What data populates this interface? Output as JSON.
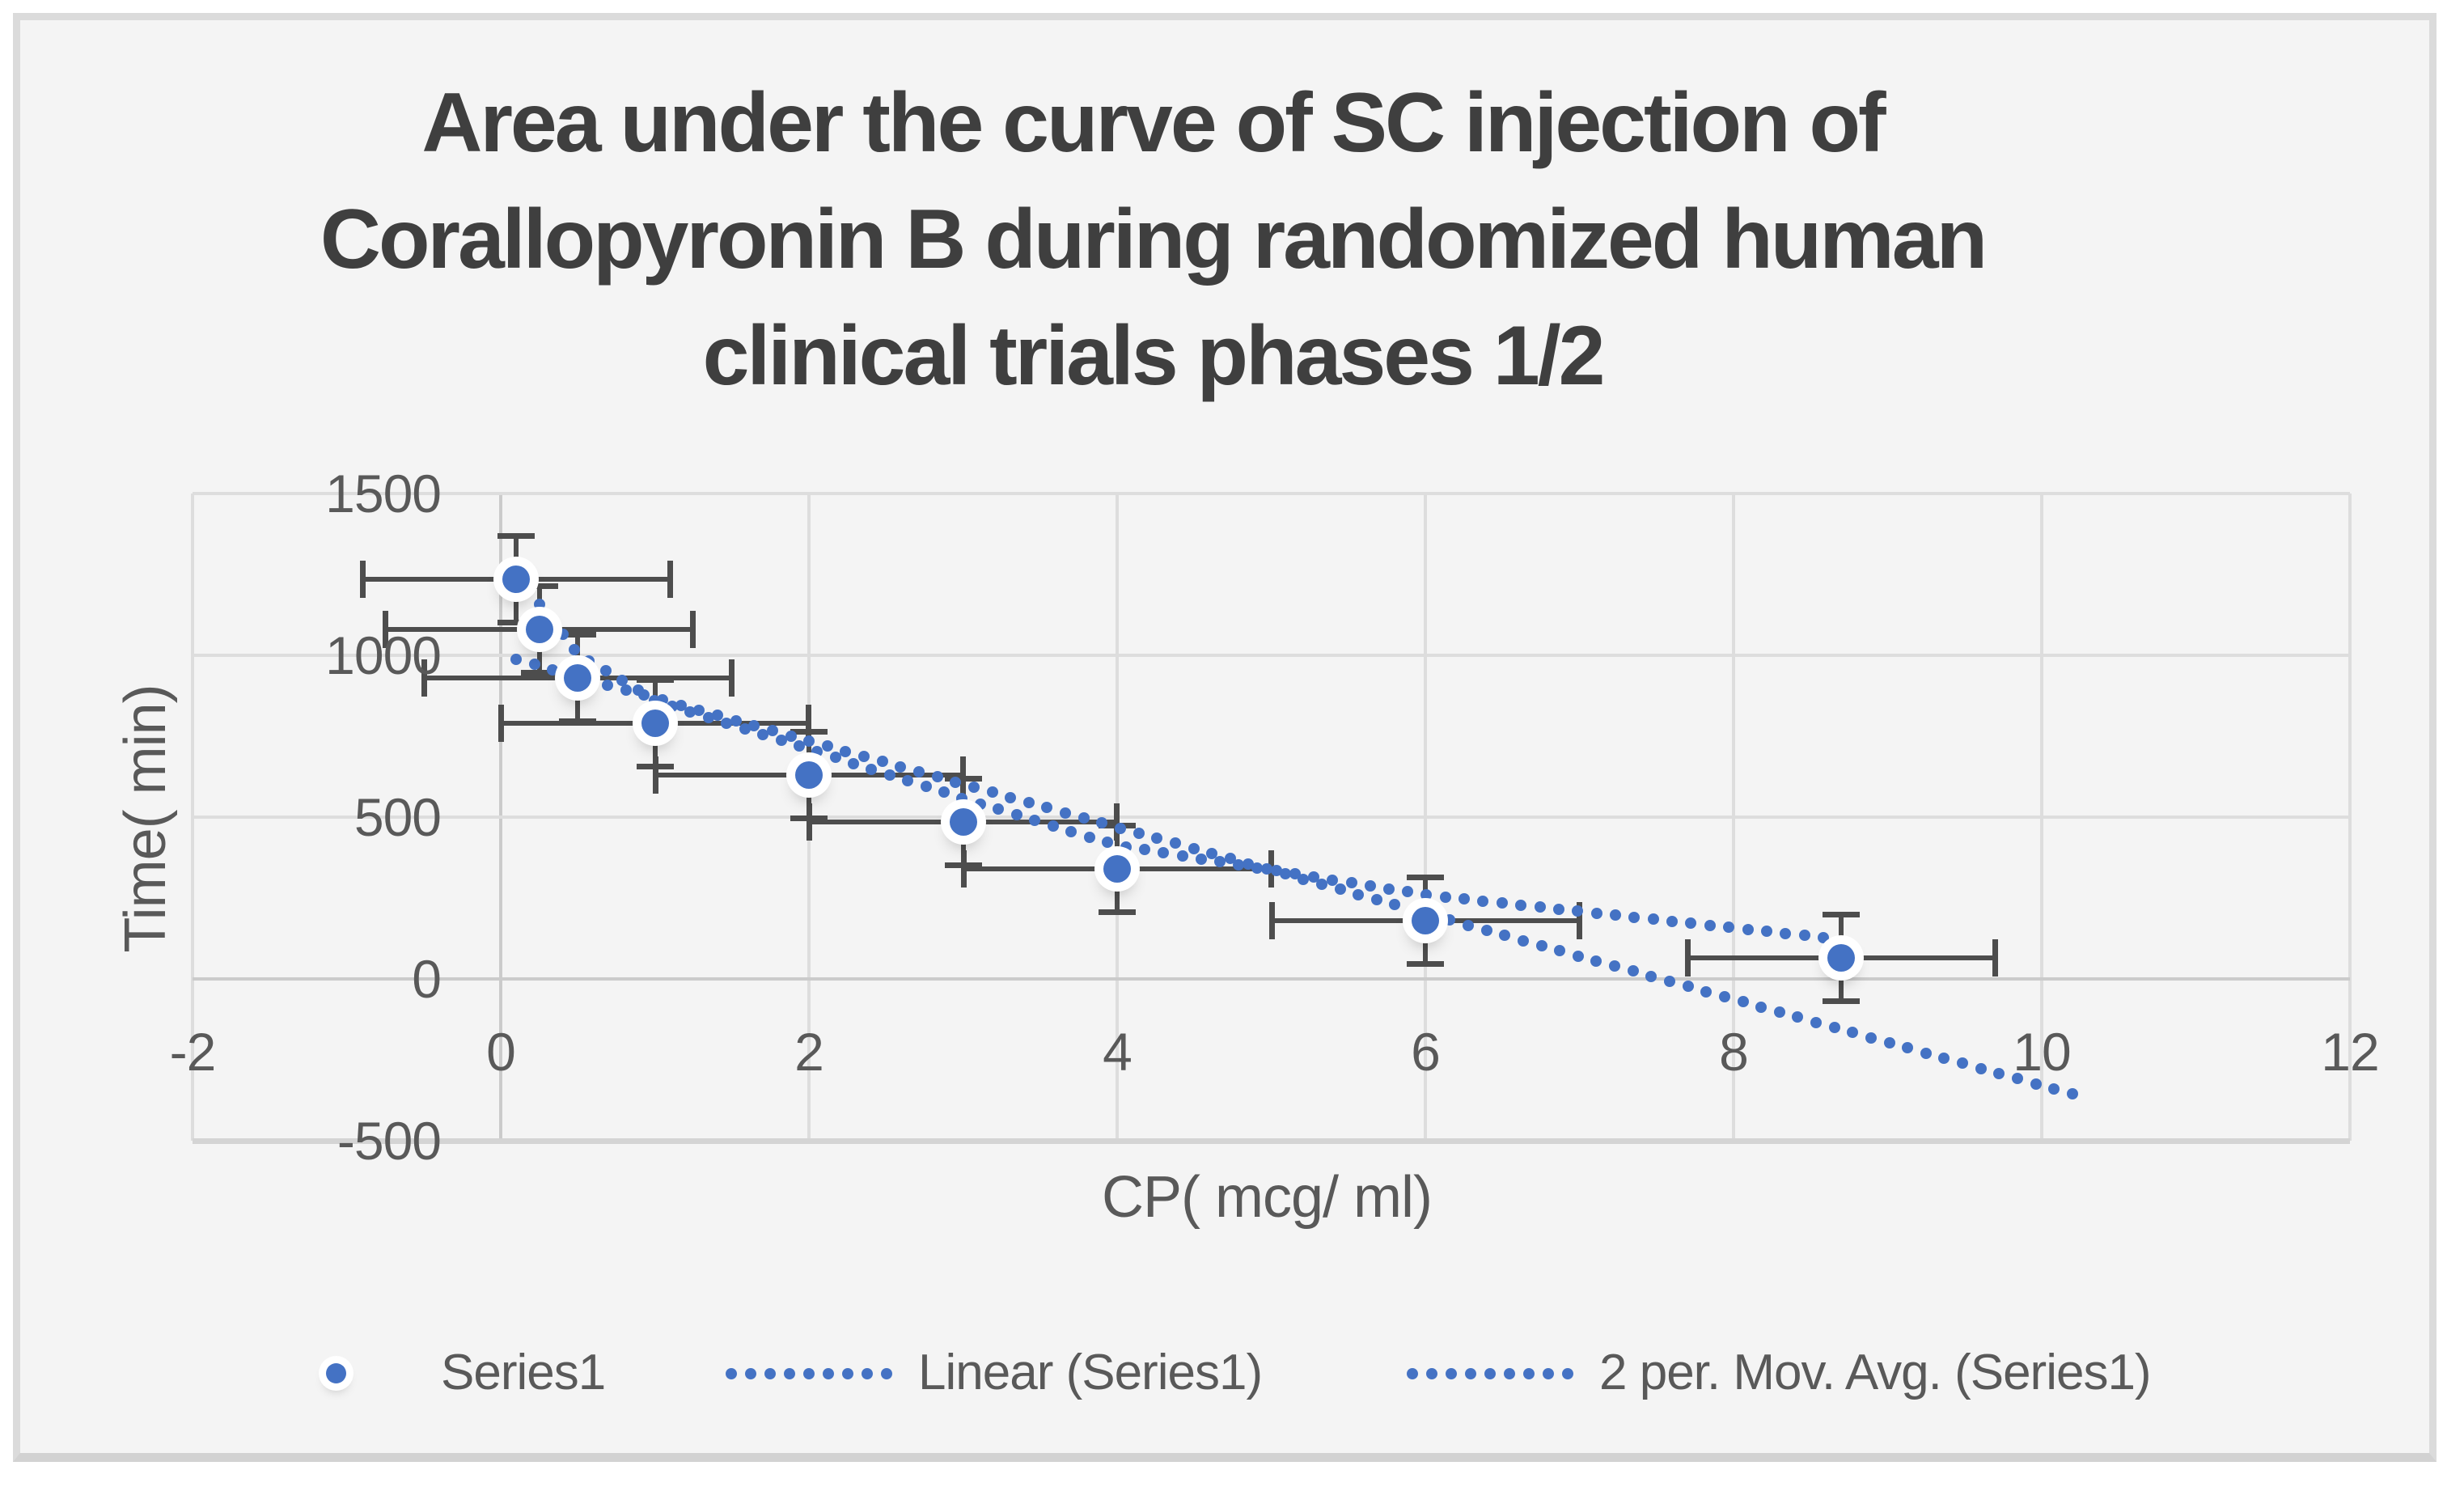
{
  "chart_data": {
    "type": "scatter",
    "title_lines": [
      "Area under the curve of SC injection of",
      "Corallopyronin B during randomized human",
      "clinical trials phases 1/2"
    ],
    "x_axis": {
      "title": "CP( mcg/ ml)",
      "min": -2,
      "max": 12,
      "ticks": [
        -2,
        0,
        2,
        4,
        6,
        8,
        10,
        12
      ],
      "grid": true
    },
    "y_axis": {
      "title": "Time( min)",
      "min": -500,
      "max": 1500,
      "ticks": [
        -500,
        0,
        500,
        1000,
        1500
      ],
      "grid": true
    },
    "series": [
      {
        "name": "Series1",
        "marker": "circle",
        "color": "#4472c4",
        "points": [
          {
            "x": 0.1,
            "y": 1235
          },
          {
            "x": 0.25,
            "y": 1080
          },
          {
            "x": 0.5,
            "y": 930
          },
          {
            "x": 1.0,
            "y": 790
          },
          {
            "x": 2.0,
            "y": 630
          },
          {
            "x": 3.0,
            "y": 485
          },
          {
            "x": 4.0,
            "y": 340
          },
          {
            "x": 6.0,
            "y": 180
          },
          {
            "x": 8.7,
            "y": 65
          }
        ],
        "x_error_plus_minus": 1.0,
        "y_error_plus_minus": 135
      }
    ],
    "trendlines": [
      {
        "name": "Linear (Series1)",
        "type": "linear",
        "slope": -133,
        "intercept": 1001,
        "x_start": 0.1,
        "x_end": 10.25,
        "style": "dotted",
        "color": "#4472c4"
      },
      {
        "name": "2 per. Mov. Avg. (Series1)",
        "type": "moving_average",
        "period": 2,
        "style": "dotted",
        "color": "#4472c4"
      }
    ],
    "legend": {
      "position": "bottom",
      "items": [
        {
          "label": "Series1",
          "swatch": "marker"
        },
        {
          "label": "Linear (Series1)",
          "swatch": "dotted-line"
        },
        {
          "label": "2 per. Mov. Avg. (Series1)",
          "swatch": "dotted-line"
        }
      ]
    },
    "colors": {
      "series_blue": "#4472c4",
      "error_bar": "#4d4d4d",
      "gridline": "#dddddd",
      "axis_line": "#cbcbcb",
      "background": "#f4f4f4",
      "frame_border": "#dbdbdb",
      "title_text": "#3f3f3f",
      "label_text": "#595959"
    }
  }
}
